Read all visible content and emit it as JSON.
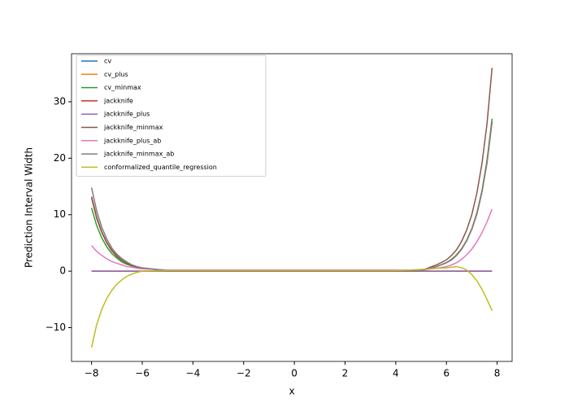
{
  "chart_data": {
    "type": "line",
    "x_label": "x",
    "y_label": "Prediction Interval Width",
    "x": [
      -8,
      -7.8,
      -7.6,
      -7.4,
      -7.2,
      -7,
      -6.8,
      -6.6,
      -6.4,
      -6.2,
      -6,
      -5,
      -4,
      -2,
      0,
      2,
      4,
      5,
      5.6,
      6,
      6.2,
      6.4,
      6.6,
      6.8,
      7,
      7.2,
      7.4,
      7.6,
      7.8
    ],
    "series": [
      {
        "name": "cv",
        "color": "#1f77b4",
        "values": [
          0,
          0,
          0,
          0,
          0,
          0,
          0,
          0,
          0,
          0,
          0,
          0,
          0,
          0,
          0,
          0,
          0,
          0,
          0,
          0,
          0,
          0,
          0,
          0,
          0,
          0,
          0,
          0,
          0
        ]
      },
      {
        "name": "cv_plus",
        "color": "#ff7f0e",
        "values": [
          0,
          0,
          0,
          0,
          0,
          0,
          0,
          0,
          0,
          0,
          0,
          0,
          0,
          0,
          0,
          0,
          0,
          0,
          0,
          0,
          0,
          0,
          0,
          0,
          0,
          0,
          0,
          0,
          0
        ]
      },
      {
        "name": "cv_minmax",
        "color": "#2ca02c",
        "values": [
          11.2,
          8.1,
          5.9,
          4.3,
          3.1,
          2.3,
          1.6,
          1.2,
          0.9,
          0.6,
          0.5,
          0.1,
          0.1,
          0.1,
          0.1,
          0.1,
          0.1,
          0.1,
          0.8,
          1.5,
          2.1,
          2.9,
          4.0,
          5.5,
          7.5,
          10.3,
          14.2,
          19.6,
          27.0
        ]
      },
      {
        "name": "jackknife",
        "color": "#d62728",
        "values": [
          13,
          9.4,
          6.9,
          5.0,
          3.6,
          2.6,
          1.9,
          1.4,
          1.0,
          0.7,
          0.5,
          0.1,
          0.1,
          0.1,
          0.1,
          0.1,
          0.1,
          0.1,
          0.8,
          1.5,
          2.0,
          2.8,
          3.9,
          5.4,
          7.4,
          10.1,
          14.0,
          19.2,
          26.5
        ]
      },
      {
        "name": "jackknife_plus",
        "color": "#9467bd",
        "values": [
          0,
          0,
          0,
          0,
          0,
          0,
          0,
          0,
          0,
          0,
          0,
          0,
          0,
          0,
          0,
          0,
          0,
          0,
          0,
          0,
          0,
          0,
          0,
          0,
          0,
          0,
          0,
          0,
          0
        ]
      },
      {
        "name": "jackknife_minmax",
        "color": "#8c564b",
        "values": [
          13.2,
          9.6,
          7.0,
          5.1,
          3.7,
          2.7,
          1.9,
          1.4,
          1.0,
          0.7,
          0.5,
          0.1,
          0.1,
          0.1,
          0.1,
          0.1,
          0.1,
          0.1,
          1.1,
          2.0,
          2.8,
          3.8,
          5.3,
          7.3,
          10.0,
          13.8,
          19.0,
          26.1,
          36.0
        ]
      },
      {
        "name": "jackknife_plus_ab",
        "color": "#e377c2",
        "values": [
          4.5,
          3.5,
          2.8,
          2.2,
          1.7,
          1.4,
          1.1,
          0.8,
          0.7,
          0.5,
          0.4,
          0.2,
          0.2,
          0.2,
          0.2,
          0.2,
          0.2,
          0.2,
          0.5,
          0.8,
          1.1,
          1.5,
          2.1,
          2.9,
          3.9,
          5.2,
          6.8,
          8.7,
          11.0
        ]
      },
      {
        "name": "jackknife_minmax_ab",
        "color": "#7f7f7f",
        "values": [
          14.8,
          10.7,
          7.8,
          5.7,
          4.1,
          3.0,
          2.2,
          1.6,
          1.1,
          0.8,
          0.6,
          0.1,
          0.1,
          0.1,
          0.1,
          0.1,
          0.1,
          0.1,
          0.8,
          1.5,
          2.0,
          2.8,
          3.9,
          5.4,
          7.4,
          10.1,
          14.0,
          19.2,
          26.5
        ]
      },
      {
        "name": "conformalized_quantile_regression",
        "color": "#bcbd22",
        "values": [
          -13.5,
          -9.5,
          -6.8,
          -4.8,
          -3.4,
          -2.3,
          -1.5,
          -0.9,
          -0.5,
          -0.2,
          0.0,
          0.1,
          0.1,
          0.1,
          0.1,
          0.1,
          0.1,
          0.3,
          0.5,
          0.6,
          0.7,
          0.8,
          0.6,
          0.2,
          -0.6,
          -1.7,
          -3.2,
          -5.0,
          -7.0
        ]
      }
    ],
    "xlim": [
      -8.79,
      8.59
    ],
    "ylim": [
      -15.98,
      38.5
    ],
    "xticks": [
      {
        "value": -8,
        "label": "−8"
      },
      {
        "value": -6,
        "label": "−6"
      },
      {
        "value": -4,
        "label": "−4"
      },
      {
        "value": -2,
        "label": "−2"
      },
      0,
      2,
      4,
      6,
      8
    ],
    "yticks": [
      {
        "value": -10,
        "label": "−10"
      },
      0,
      10,
      20,
      30
    ],
    "legend": "upper left",
    "grid": false
  }
}
